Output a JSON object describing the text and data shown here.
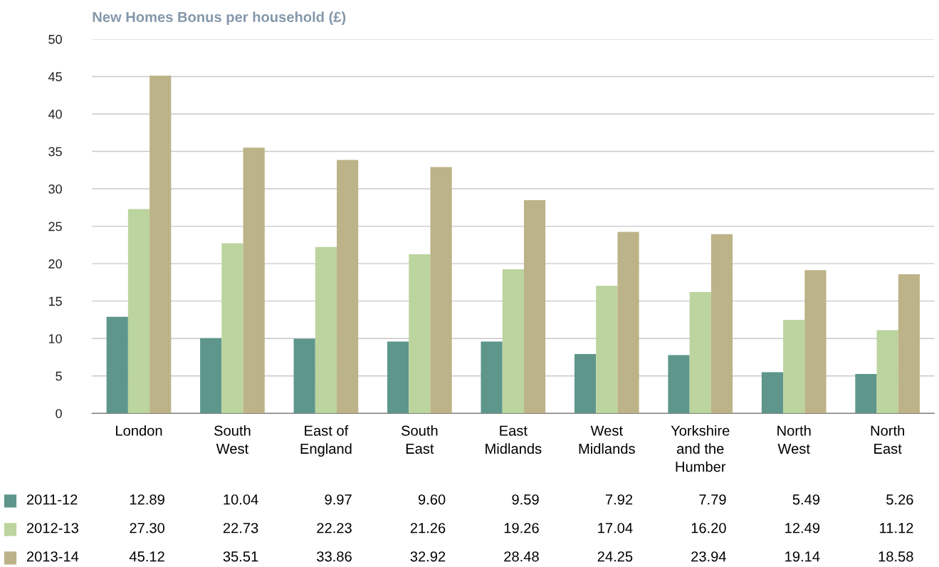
{
  "chart_data": {
    "type": "bar",
    "title": "New Homes Bonus per household (£)",
    "categories": [
      "London",
      "South\nWest",
      "East of\nEngland",
      "South\nEast",
      "East\nMidlands",
      "West\nMidlands",
      "Yorkshire\nand the\nHumber",
      "North\nWest",
      "North\nEast"
    ],
    "series": [
      {
        "name": "2011-12",
        "color": "#5e968b",
        "values": [
          12.89,
          10.04,
          9.97,
          9.6,
          9.59,
          7.92,
          7.79,
          5.49,
          5.26
        ],
        "value_labels": [
          "12.89",
          "10.04",
          "9.97",
          "9.60",
          "9.59",
          "7.92",
          "7.79",
          "5.49",
          "5.26"
        ]
      },
      {
        "name": "2012-13",
        "color": "#bcd49e",
        "values": [
          27.3,
          22.73,
          22.23,
          21.26,
          19.26,
          17.04,
          16.2,
          12.49,
          11.12
        ],
        "value_labels": [
          "27.30",
          "22.73",
          "22.23",
          "21.26",
          "19.26",
          "17.04",
          "16.20",
          "12.49",
          "11.12"
        ]
      },
      {
        "name": "2013-14",
        "color": "#bdb388",
        "values": [
          45.12,
          35.51,
          33.86,
          32.92,
          28.48,
          24.25,
          23.94,
          19.14,
          18.58
        ],
        "value_labels": [
          "45.12",
          "35.51",
          "33.86",
          "32.92",
          "28.48",
          "24.25",
          "23.94",
          "19.14",
          "18.58"
        ]
      }
    ],
    "ylim": [
      0,
      50
    ],
    "yticks": [
      0,
      5,
      10,
      15,
      20,
      25,
      30,
      35,
      40,
      45,
      50
    ],
    "grid": "y",
    "legend": "bottom left"
  }
}
